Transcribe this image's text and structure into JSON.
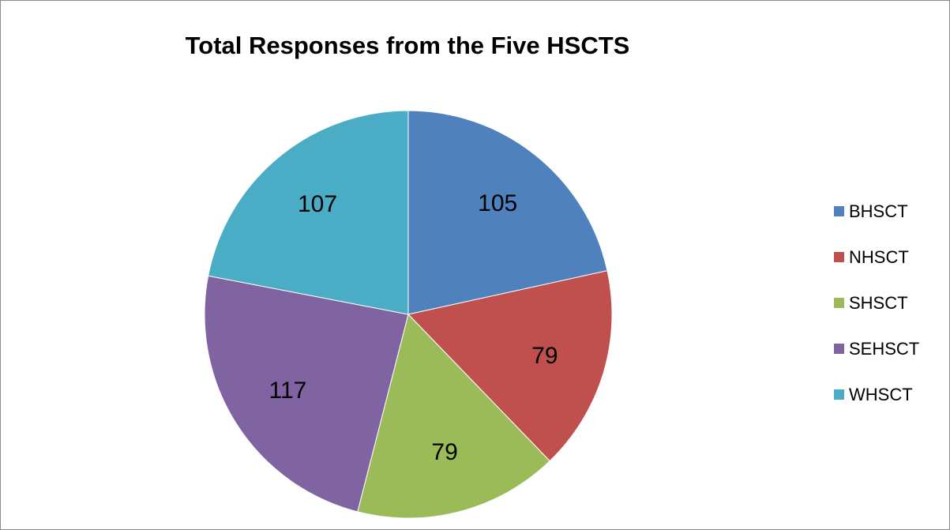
{
  "chart_data": {
    "type": "pie",
    "title": "Total Responses from the Five HSCTS",
    "categories": [
      "BHSCT",
      "NHSCT",
      "SHSCT",
      "SEHSCT",
      "WHSCT"
    ],
    "values": [
      105,
      79,
      79,
      117,
      107
    ],
    "data_labels": [
      "105",
      "79",
      "79",
      "117",
      "107"
    ],
    "colors": [
      "#4f81bd",
      "#c0504d",
      "#9bbb59",
      "#8064a2",
      "#4bacc6"
    ],
    "start_angle": "12 o'clock",
    "direction": "clockwise",
    "legend_position": "right"
  }
}
